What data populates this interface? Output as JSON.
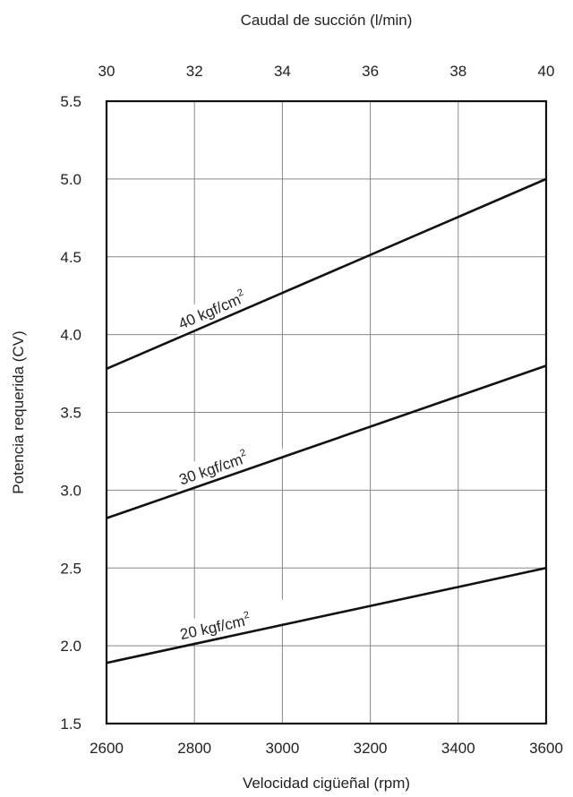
{
  "chart_data": {
    "type": "line",
    "xlabel": "Velocidad cigüeñal (rpm)",
    "x2label": "Caudal de succión (l/min)",
    "ylabel": "Potencia requerida (CV)",
    "xlim": [
      2600,
      3600
    ],
    "x2lim": [
      30,
      40
    ],
    "ylim": [
      1.5,
      5.5
    ],
    "xticks": [
      2600,
      2800,
      3000,
      3200,
      3400,
      3600
    ],
    "x2ticks": [
      30,
      32,
      34,
      36,
      38,
      40
    ],
    "yticks": [
      "1.5",
      "2.0",
      "2.5",
      "3.0",
      "3.5",
      "4.0",
      "4.5",
      "5.0",
      "5.5"
    ],
    "grid": true,
    "series": [
      {
        "label": "40 kgf/cm",
        "label_sup": "2",
        "x": [
          2600,
          3600
        ],
        "y": [
          3.78,
          5.0
        ]
      },
      {
        "label": "30 kgf/cm",
        "label_sup": "2",
        "x": [
          2600,
          3600
        ],
        "y": [
          2.82,
          3.8
        ]
      },
      {
        "label": "20 kgf/cm",
        "label_sup": "2",
        "x": [
          2600,
          3600
        ],
        "y": [
          1.89,
          2.5
        ]
      }
    ],
    "colors": {
      "line": "#111111",
      "grid": "#888888",
      "frame": "#111111"
    }
  }
}
